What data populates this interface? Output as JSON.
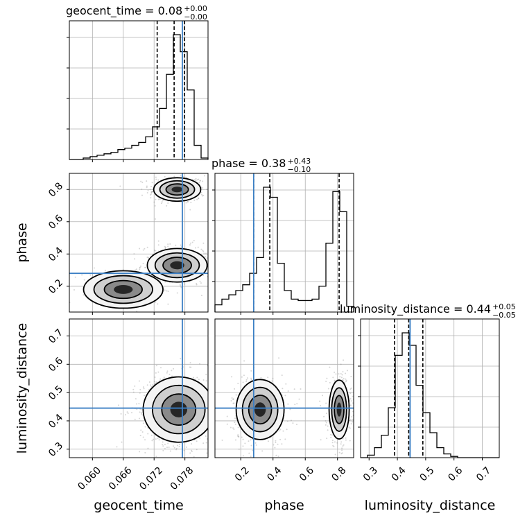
{
  "chart_data": {
    "type": "corner",
    "parameters": [
      {
        "name": "geocent_time",
        "label": "geocent_time",
        "range": [
          0.0555,
          0.0825
        ],
        "ticks": [
          "0.060",
          "0.066",
          "0.072",
          "0.078"
        ],
        "tick_values": [
          0.06,
          0.066,
          0.072,
          0.078
        ],
        "truth": 0.0775,
        "quantiles": [
          0.0726,
          0.0759,
          0.0779
        ],
        "title": "geocent_time = 0.08",
        "title_plus": "+0.00",
        "title_minus": "−0.00",
        "hist_edges_start": 0.0555,
        "hist_bin_width": 0.00135,
        "hist_values": [
          0,
          0,
          1,
          2,
          3,
          4,
          5,
          7,
          8,
          10,
          12,
          16,
          23,
          36,
          60,
          88,
          76,
          49,
          10,
          1
        ]
      },
      {
        "name": "phase",
        "label": "phase",
        "range": [
          0.04,
          0.9
        ],
        "ticks": [
          "0.2",
          "0.4",
          "0.6",
          "0.8"
        ],
        "tick_values": [
          0.2,
          0.4,
          0.6,
          0.8
        ],
        "truth": 0.28,
        "quantiles": [
          0.28,
          0.38,
          0.81
        ],
        "title": "phase = 0.38",
        "title_plus": "+0.43",
        "title_minus": "−0.10",
        "hist_edges_start": 0.04,
        "hist_bin_width": 0.043,
        "hist_values": [
          5,
          9,
          12,
          15,
          19,
          27,
          38,
          87,
          80,
          34,
          15,
          9,
          8,
          8,
          9,
          18,
          48,
          84,
          70,
          4
        ]
      },
      {
        "name": "luminosity_distance",
        "label": "luminosity_distance",
        "range": [
          0.27,
          0.76
        ],
        "ticks": [
          "0.3",
          "0.4",
          "0.5",
          "0.6",
          "0.7"
        ],
        "tick_values": [
          0.3,
          0.4,
          0.5,
          0.6,
          0.7
        ],
        "truth": 0.445,
        "quantiles": [
          0.39,
          0.44,
          0.49
        ],
        "title": "luminosity_distance = 0.44",
        "title_plus": "+0.05",
        "title_minus": "−0.05",
        "hist_edges_start": 0.27,
        "hist_bin_width": 0.0245,
        "hist_values": [
          0,
          2,
          8,
          18,
          40,
          82,
          100,
          90,
          58,
          36,
          20,
          8,
          3,
          1,
          0,
          0,
          0,
          0,
          0,
          0
        ]
      }
    ],
    "pairs": [
      {
        "x": "geocent_time",
        "y": "phase",
        "modes": [
          {
            "cx": 0.0765,
            "cy": 0.8,
            "sx": 0.0022,
            "sy": 0.035,
            "weight": 0.45
          },
          {
            "cx": 0.0765,
            "cy": 0.33,
            "sx": 0.0028,
            "sy": 0.05,
            "weight": 0.45
          },
          {
            "cx": 0.066,
            "cy": 0.18,
            "sx": 0.004,
            "sy": 0.06,
            "weight": 0.1
          }
        ]
      },
      {
        "x": "geocent_time",
        "y": "luminosity_distance",
        "modes": [
          {
            "cx": 0.0768,
            "cy": 0.44,
            "sx": 0.003,
            "sy": 0.05,
            "weight": 1.0
          }
        ]
      },
      {
        "x": "phase",
        "y": "luminosity_distance",
        "modes": [
          {
            "cx": 0.32,
            "cy": 0.44,
            "sx": 0.07,
            "sy": 0.05,
            "weight": 0.55
          },
          {
            "cx": 0.81,
            "cy": 0.44,
            "sx": 0.03,
            "sy": 0.05,
            "weight": 0.45
          }
        ]
      }
    ],
    "grid": true
  }
}
